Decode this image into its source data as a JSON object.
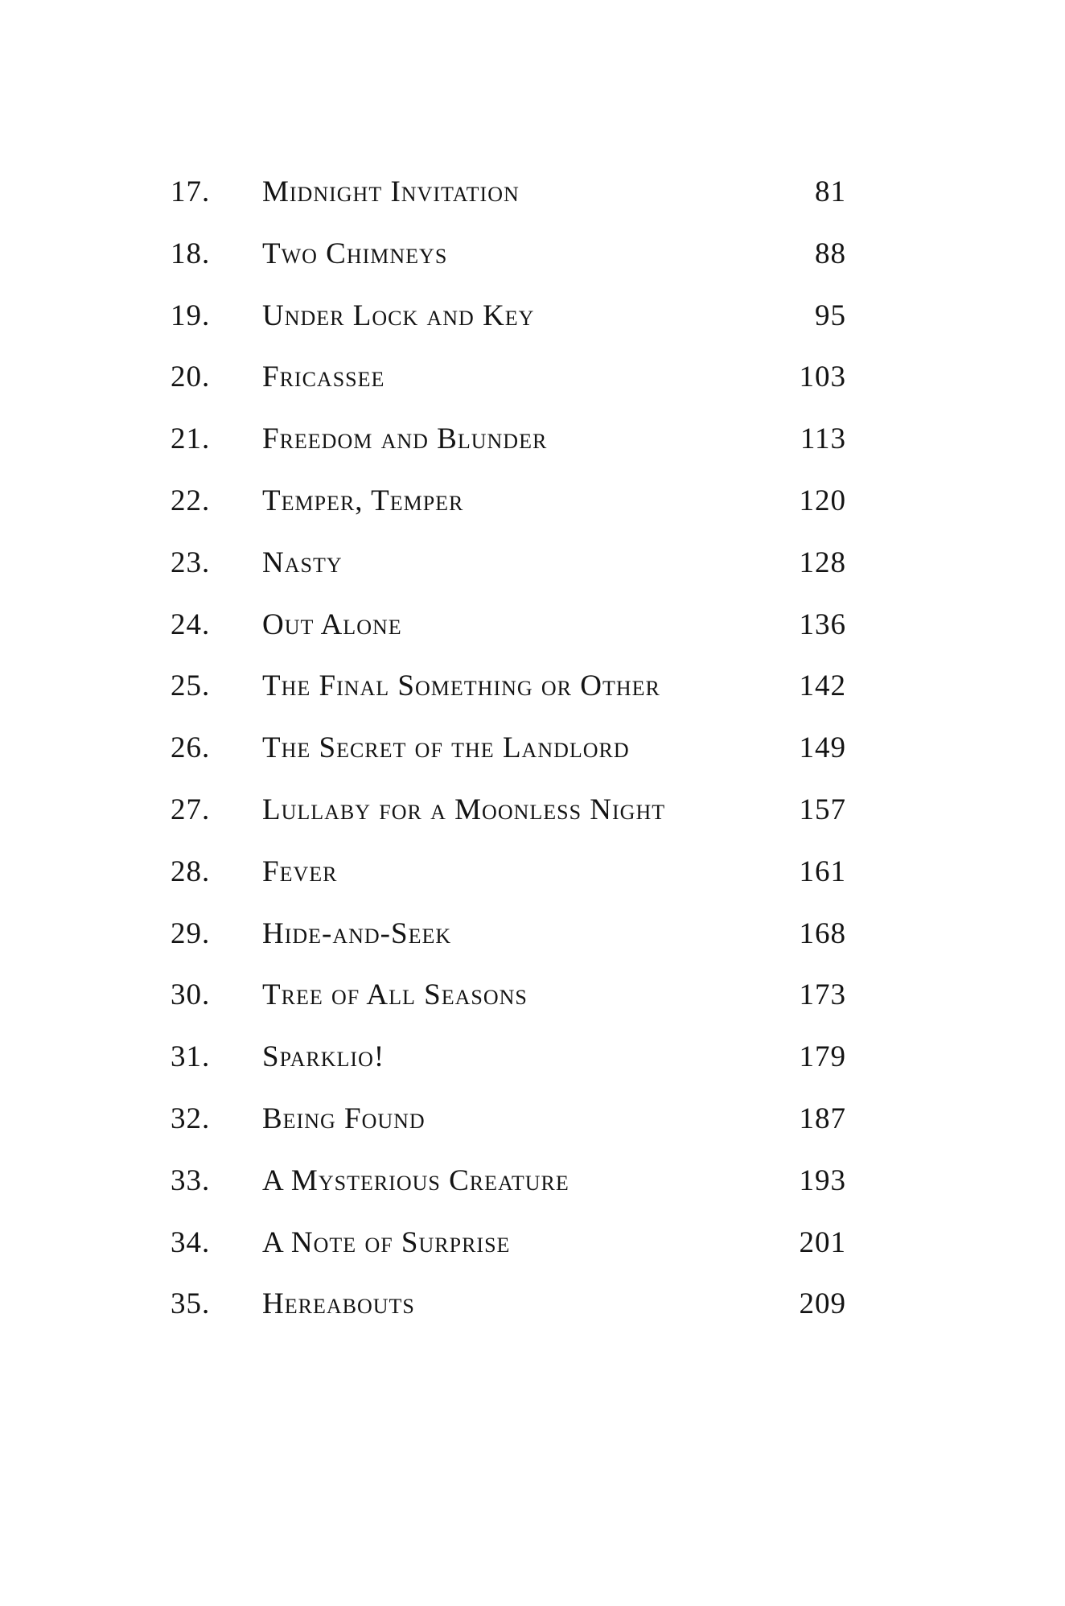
{
  "document": {
    "kind": "table-of-contents-page",
    "text_color": "#141414",
    "background_color": "#ffffff"
  },
  "toc": {
    "entries": [
      {
        "number": "17.",
        "title": "Midnight Invitation",
        "page": "81"
      },
      {
        "number": "18.",
        "title": "Two Chimneys",
        "page": "88"
      },
      {
        "number": "19.",
        "title": "Under Lock and Key",
        "page": "95"
      },
      {
        "number": "20.",
        "title": "Fricassee",
        "page": "103"
      },
      {
        "number": "21.",
        "title": "Freedom and Blunder",
        "page": "113"
      },
      {
        "number": "22.",
        "title": "Temper, Temper",
        "page": "120"
      },
      {
        "number": "23.",
        "title": "Nasty",
        "page": "128"
      },
      {
        "number": "24.",
        "title": "Out Alone",
        "page": "136"
      },
      {
        "number": "25.",
        "title": "The Final Something or Other",
        "page": "142"
      },
      {
        "number": "26.",
        "title": "The Secret of the Landlord",
        "page": "149"
      },
      {
        "number": "27.",
        "title": "Lullaby for a Moonless Night",
        "page": "157"
      },
      {
        "number": "28.",
        "title": "Fever",
        "page": "161"
      },
      {
        "number": "29.",
        "title": "Hide-and-Seek",
        "page": "168"
      },
      {
        "number": "30.",
        "title": "Tree of All Seasons",
        "page": "173"
      },
      {
        "number": "31.",
        "title": "Sparklio!",
        "page": "179"
      },
      {
        "number": "32.",
        "title": "Being Found",
        "page": "187"
      },
      {
        "number": "33.",
        "title": "A Mysterious Creature",
        "page": "193"
      },
      {
        "number": "34.",
        "title": "A Note of Surprise",
        "page": "201"
      },
      {
        "number": "35.",
        "title": "Hereabouts",
        "page": "209"
      }
    ]
  }
}
